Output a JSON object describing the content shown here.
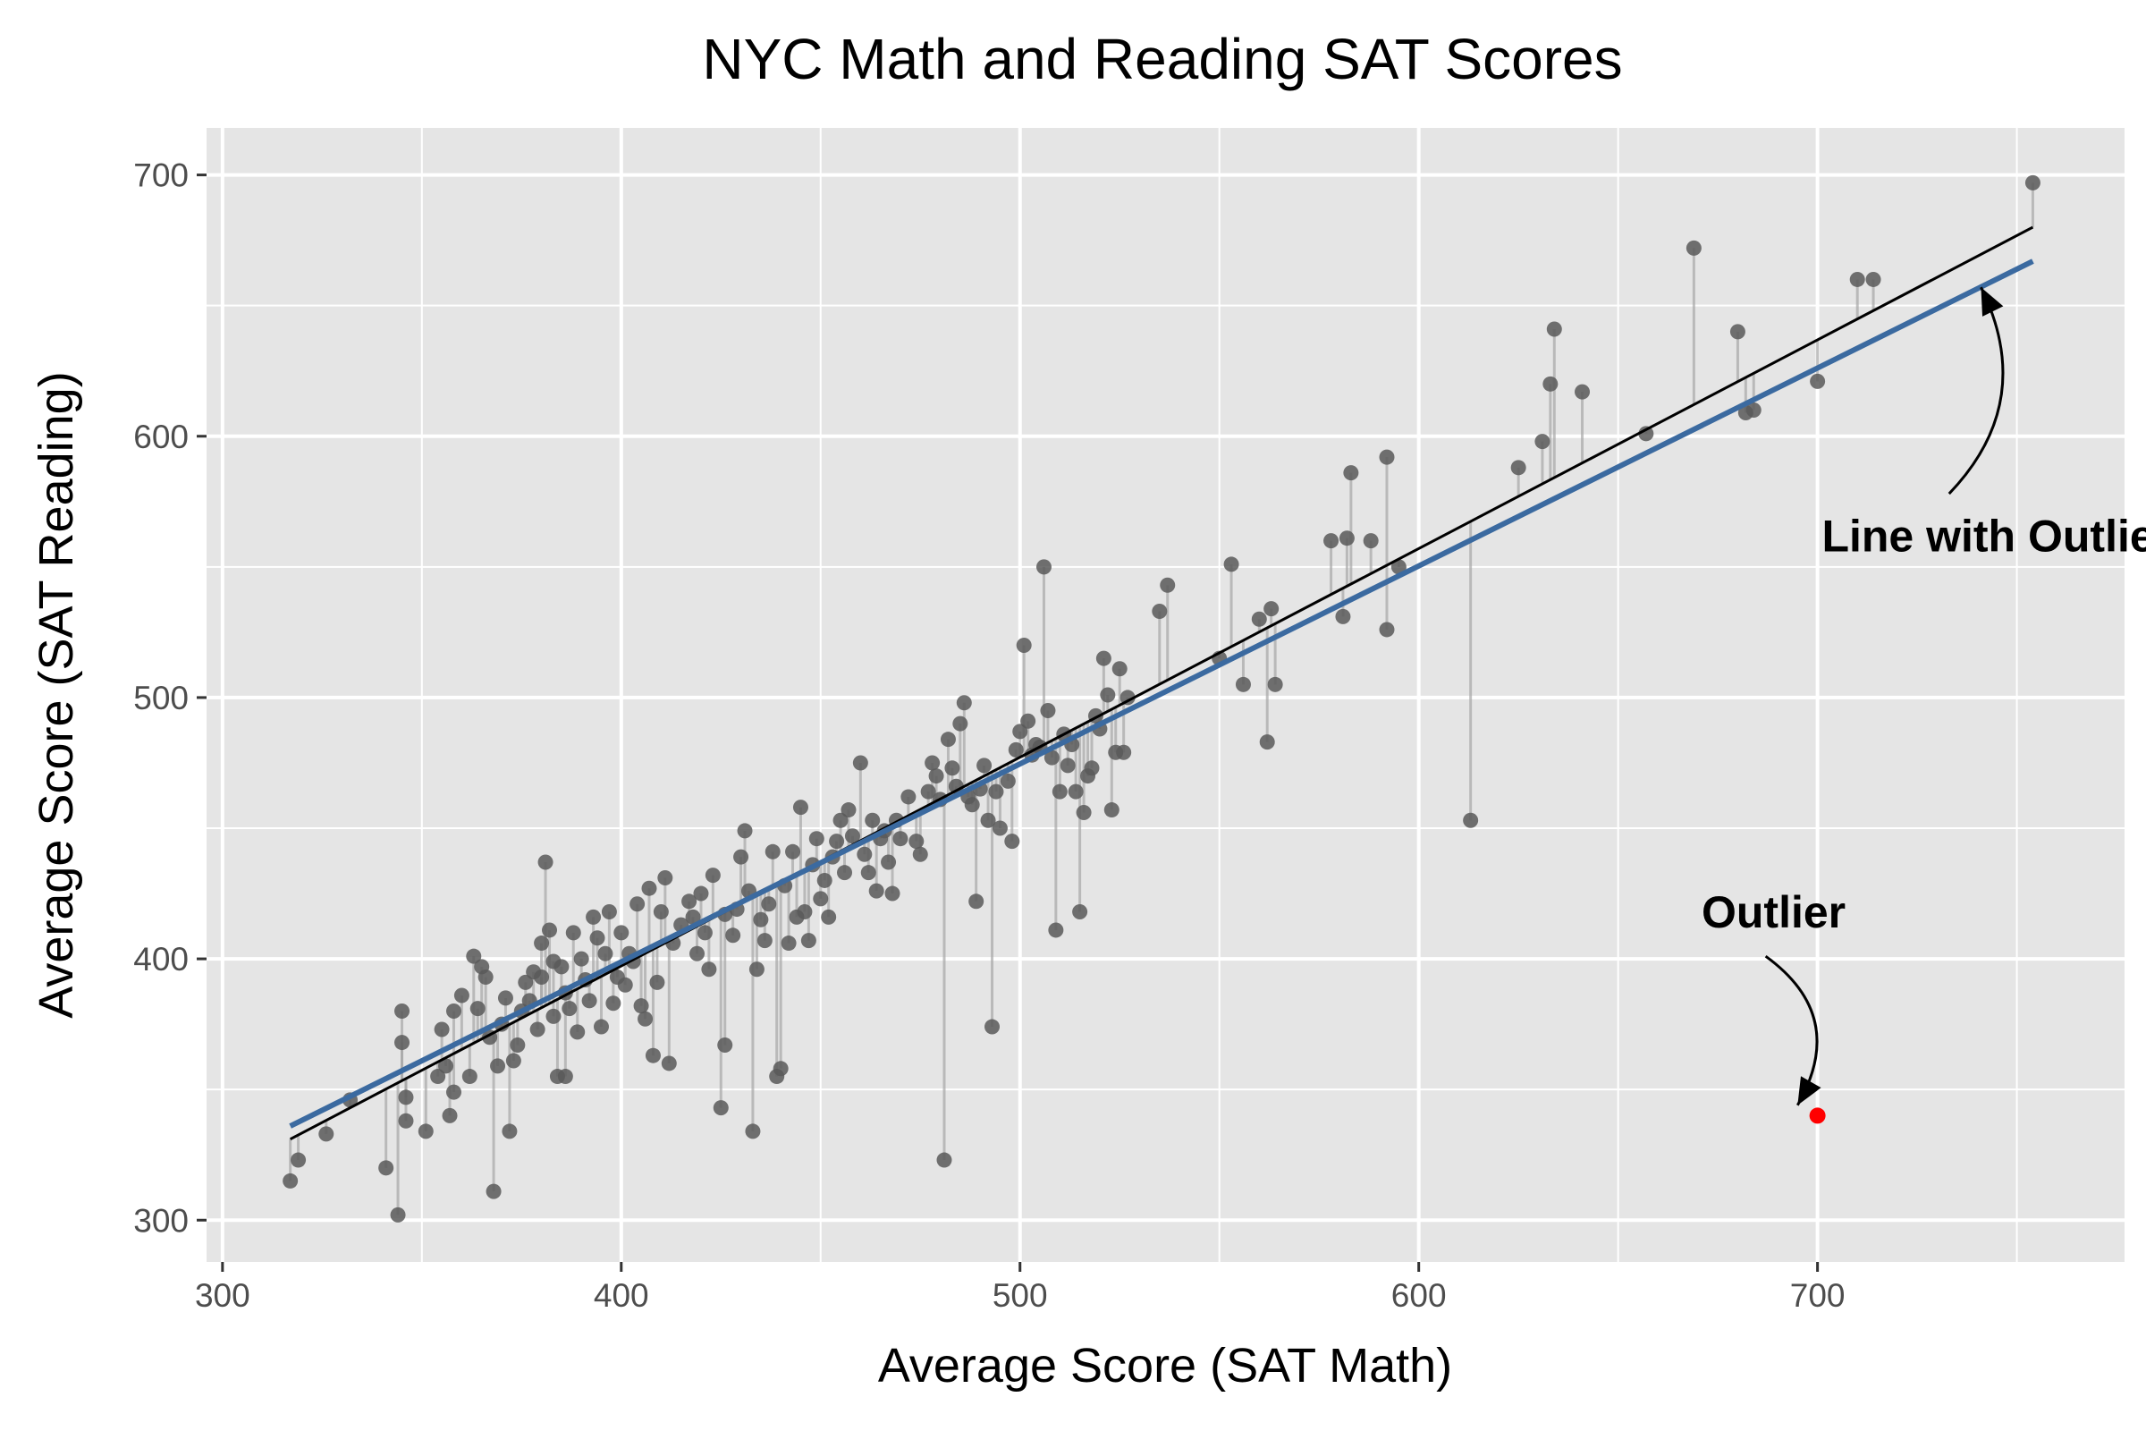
{
  "chart_data": {
    "type": "scatter",
    "title": "NYC Math and Reading SAT Scores",
    "xlabel": "Average Score (SAT Math)",
    "ylabel": "Average Score (SAT Reading)",
    "xlim": [
      296,
      777
    ],
    "ylim": [
      284,
      718
    ],
    "x_ticks": [
      300,
      400,
      500,
      600,
      700
    ],
    "y_ticks": [
      300,
      400,
      500,
      600,
      700
    ],
    "grid": true,
    "colors": {
      "panel": "#e5e5e5",
      "grid": "#ffffff",
      "points": "#595959",
      "residuals": "#a6a6a6",
      "fit_with_outlier": "#3b6aa0",
      "fit_without_outlier": "#000000",
      "outlier": "#ff0000",
      "axis_text": "#4d4d4d",
      "tick": "#333333"
    },
    "fit_without_outlier": {
      "x": [
        317,
        754
      ],
      "y": [
        331,
        680
      ]
    },
    "fit_with_outlier": {
      "x": [
        317,
        754
      ],
      "y": [
        336,
        667
      ]
    },
    "outlier": {
      "x": 700,
      "y": 340
    },
    "annotations": [
      {
        "text": "Line with Outlier",
        "x": 745,
        "y": 556,
        "arrow_from": [
          733,
          578
        ],
        "arrow_to": [
          741,
          657
        ]
      },
      {
        "text": "Outlier",
        "x": 689,
        "y": 412,
        "arrow_from": [
          687,
          401
        ],
        "arrow_to": [
          695,
          344
        ]
      }
    ],
    "points": [
      [
        317,
        315
      ],
      [
        319,
        323
      ],
      [
        326,
        333
      ],
      [
        332,
        346
      ],
      [
        341,
        320
      ],
      [
        344,
        302
      ],
      [
        345,
        380
      ],
      [
        345,
        368
      ],
      [
        346,
        347
      ],
      [
        346,
        338
      ],
      [
        351,
        334
      ],
      [
        354,
        355
      ],
      [
        355,
        373
      ],
      [
        356,
        359
      ],
      [
        357,
        340
      ],
      [
        358,
        349
      ],
      [
        358,
        380
      ],
      [
        360,
        386
      ],
      [
        362,
        355
      ],
      [
        363,
        401
      ],
      [
        364,
        381
      ],
      [
        365,
        397
      ],
      [
        366,
        393
      ],
      [
        367,
        370
      ],
      [
        368,
        311
      ],
      [
        369,
        359
      ],
      [
        370,
        375
      ],
      [
        371,
        385
      ],
      [
        372,
        334
      ],
      [
        373,
        361
      ],
      [
        374,
        367
      ],
      [
        375,
        380
      ],
      [
        376,
        391
      ],
      [
        377,
        384
      ],
      [
        378,
        395
      ],
      [
        379,
        373
      ],
      [
        380,
        406
      ],
      [
        380,
        393
      ],
      [
        381,
        437
      ],
      [
        382,
        411
      ],
      [
        383,
        399
      ],
      [
        383,
        378
      ],
      [
        384,
        355
      ],
      [
        385,
        397
      ],
      [
        386,
        387
      ],
      [
        386,
        355
      ],
      [
        387,
        381
      ],
      [
        388,
        410
      ],
      [
        389,
        372
      ],
      [
        390,
        400
      ],
      [
        391,
        392
      ],
      [
        392,
        384
      ],
      [
        393,
        416
      ],
      [
        394,
        408
      ],
      [
        395,
        374
      ],
      [
        396,
        402
      ],
      [
        397,
        418
      ],
      [
        398,
        383
      ],
      [
        399,
        393
      ],
      [
        400,
        410
      ],
      [
        401,
        390
      ],
      [
        402,
        402
      ],
      [
        403,
        399
      ],
      [
        404,
        421
      ],
      [
        405,
        382
      ],
      [
        406,
        377
      ],
      [
        407,
        427
      ],
      [
        408,
        363
      ],
      [
        409,
        391
      ],
      [
        410,
        418
      ],
      [
        411,
        431
      ],
      [
        412,
        360
      ],
      [
        413,
        406
      ],
      [
        415,
        413
      ],
      [
        417,
        422
      ],
      [
        418,
        416
      ],
      [
        419,
        402
      ],
      [
        420,
        425
      ],
      [
        421,
        410
      ],
      [
        422,
        396
      ],
      [
        423,
        432
      ],
      [
        425,
        343
      ],
      [
        426,
        367
      ],
      [
        426,
        417
      ],
      [
        428,
        409
      ],
      [
        429,
        419
      ],
      [
        430,
        439
      ],
      [
        431,
        449
      ],
      [
        432,
        426
      ],
      [
        433,
        334
      ],
      [
        434,
        396
      ],
      [
        435,
        415
      ],
      [
        436,
        407
      ],
      [
        437,
        421
      ],
      [
        438,
        441
      ],
      [
        439,
        355
      ],
      [
        440,
        358
      ],
      [
        441,
        428
      ],
      [
        442,
        406
      ],
      [
        443,
        441
      ],
      [
        444,
        416
      ],
      [
        445,
        458
      ],
      [
        446,
        418
      ],
      [
        447,
        407
      ],
      [
        448,
        436
      ],
      [
        449,
        446
      ],
      [
        450,
        423
      ],
      [
        451,
        430
      ],
      [
        452,
        416
      ],
      [
        453,
        439
      ],
      [
        454,
        445
      ],
      [
        455,
        453
      ],
      [
        456,
        433
      ],
      [
        457,
        457
      ],
      [
        458,
        447
      ],
      [
        460,
        475
      ],
      [
        461,
        440
      ],
      [
        462,
        433
      ],
      [
        463,
        453
      ],
      [
        464,
        426
      ],
      [
        465,
        446
      ],
      [
        466,
        449
      ],
      [
        467,
        437
      ],
      [
        468,
        425
      ],
      [
        469,
        453
      ],
      [
        470,
        446
      ],
      [
        472,
        462
      ],
      [
        474,
        445
      ],
      [
        475,
        440
      ],
      [
        477,
        464
      ],
      [
        478,
        475
      ],
      [
        479,
        470
      ],
      [
        480,
        461
      ],
      [
        481,
        323
      ],
      [
        482,
        484
      ],
      [
        483,
        473
      ],
      [
        484,
        466
      ],
      [
        485,
        490
      ],
      [
        486,
        498
      ],
      [
        487,
        462
      ],
      [
        488,
        459
      ],
      [
        489,
        422
      ],
      [
        490,
        465
      ],
      [
        491,
        474
      ],
      [
        492,
        453
      ],
      [
        493,
        374
      ],
      [
        494,
        464
      ],
      [
        495,
        450
      ],
      [
        497,
        468
      ],
      [
        498,
        445
      ],
      [
        499,
        480
      ],
      [
        500,
        487
      ],
      [
        501,
        520
      ],
      [
        502,
        491
      ],
      [
        503,
        478
      ],
      [
        504,
        482
      ],
      [
        505,
        481
      ],
      [
        506,
        550
      ],
      [
        507,
        495
      ],
      [
        508,
        477
      ],
      [
        509,
        411
      ],
      [
        510,
        464
      ],
      [
        511,
        486
      ],
      [
        512,
        474
      ],
      [
        513,
        482
      ],
      [
        514,
        464
      ],
      [
        515,
        418
      ],
      [
        516,
        456
      ],
      [
        517,
        470
      ],
      [
        518,
        473
      ],
      [
        519,
        493
      ],
      [
        520,
        488
      ],
      [
        521,
        515
      ],
      [
        522,
        501
      ],
      [
        523,
        457
      ],
      [
        524,
        479
      ],
      [
        525,
        511
      ],
      [
        526,
        479
      ],
      [
        527,
        500
      ],
      [
        535,
        533
      ],
      [
        537,
        543
      ],
      [
        550,
        515
      ],
      [
        553,
        551
      ],
      [
        556,
        505
      ],
      [
        560,
        530
      ],
      [
        562,
        483
      ],
      [
        563,
        534
      ],
      [
        564,
        505
      ],
      [
        578,
        560
      ],
      [
        581,
        531
      ],
      [
        582,
        561
      ],
      [
        583,
        586
      ],
      [
        588,
        560
      ],
      [
        592,
        526
      ],
      [
        592,
        592
      ],
      [
        595,
        550
      ],
      [
        613,
        453
      ],
      [
        625,
        588
      ],
      [
        631,
        598
      ],
      [
        633,
        620
      ],
      [
        634,
        641
      ],
      [
        641,
        617
      ],
      [
        657,
        601
      ],
      [
        669,
        672
      ],
      [
        680,
        640
      ],
      [
        682,
        609
      ],
      [
        684,
        610
      ],
      [
        700,
        621
      ],
      [
        710,
        660
      ],
      [
        714,
        660
      ],
      [
        754,
        697
      ]
    ]
  }
}
